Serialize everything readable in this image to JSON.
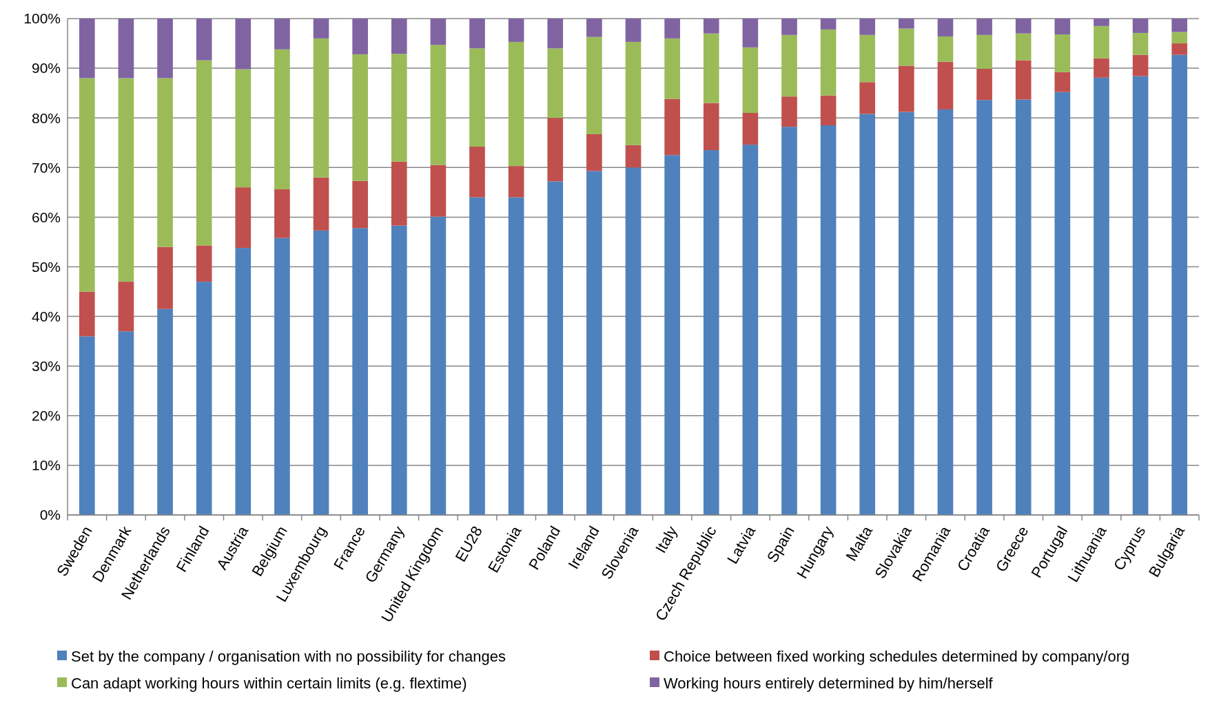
{
  "chart_data": {
    "type": "bar",
    "stacked": true,
    "categories": [
      "Sweden",
      "Denmark",
      "Netherlands",
      "Finland",
      "Austria",
      "Belgium",
      "Luxembourg",
      "France",
      "Germany",
      "United Kingdom",
      "EU28",
      "Estonia",
      "Poland",
      "Ireland",
      "Slovenia",
      "Italy",
      "Czech Republic",
      "Latvia",
      "Spain",
      "Hungary",
      "Malta",
      "Slovakia",
      "Romania",
      "Croatia",
      "Greece",
      "Portugal",
      "Lithuania",
      "Cyprus",
      "Bulgaria"
    ],
    "series": [
      {
        "name": "Set by the company / organisation  with no possibility for changes",
        "color": "#4f81bd",
        "values": [
          36,
          37,
          41.5,
          47,
          53.8,
          55.8,
          57.3,
          57.8,
          58.3,
          60.1,
          64,
          64,
          67.2,
          69.3,
          70,
          72.5,
          73.5,
          74.6,
          78.2,
          78.5,
          80.8,
          81.2,
          81.7,
          83.6,
          83.7,
          85.2,
          88.1,
          88.4,
          92.7
        ]
      },
      {
        "name": "Choice between fixed working schedules determined by company/org",
        "color": "#c0504d",
        "values": [
          9,
          10,
          12.5,
          7.3,
          12.2,
          9.8,
          10.7,
          9.5,
          12.9,
          10.4,
          10.2,
          6.3,
          12.8,
          7.4,
          4.5,
          11.3,
          9.5,
          6.4,
          6.1,
          6,
          6.4,
          9.3,
          9.6,
          6.3,
          7.9,
          4,
          3.9,
          4.3,
          2.3
        ]
      },
      {
        "name": "Can adapt working hours within certain limits (e.g. flextime)",
        "color": "#9bbb59",
        "values": [
          43,
          41,
          34,
          37.3,
          23.8,
          28.2,
          28,
          25.5,
          21.7,
          24.2,
          19.8,
          25,
          14,
          19.6,
          20.8,
          12.2,
          14,
          13.2,
          12.4,
          13.3,
          9.5,
          7.5,
          5.1,
          6.8,
          5.4,
          7.6,
          6.5,
          4.4,
          2.3
        ]
      },
      {
        "name": "Working hours entirely determined by him/herself",
        "color": "#8064a2",
        "values": [
          12,
          12,
          12,
          8.4,
          10.2,
          6.2,
          4,
          7.2,
          7.1,
          5.3,
          6,
          4.7,
          6,
          3.7,
          4.7,
          4,
          3,
          5.8,
          3.3,
          2.2,
          3.3,
          2,
          3.6,
          3.3,
          3,
          3.2,
          1.5,
          2.9,
          2.7
        ]
      }
    ],
    "ylim": [
      0,
      100
    ],
    "yticks": [
      {
        "value": 0,
        "label": "0%"
      },
      {
        "value": 10,
        "label": "10%"
      },
      {
        "value": 20,
        "label": "20%"
      },
      {
        "value": 30,
        "label": "30%"
      },
      {
        "value": 40,
        "label": "40%"
      },
      {
        "value": 50,
        "label": "50%"
      },
      {
        "value": 60,
        "label": "60%"
      },
      {
        "value": 70,
        "label": "70%"
      },
      {
        "value": 80,
        "label": "80%"
      },
      {
        "value": 90,
        "label": "90%"
      },
      {
        "value": 100,
        "label": "100%"
      }
    ],
    "grid": "y",
    "legend": "bottom"
  }
}
